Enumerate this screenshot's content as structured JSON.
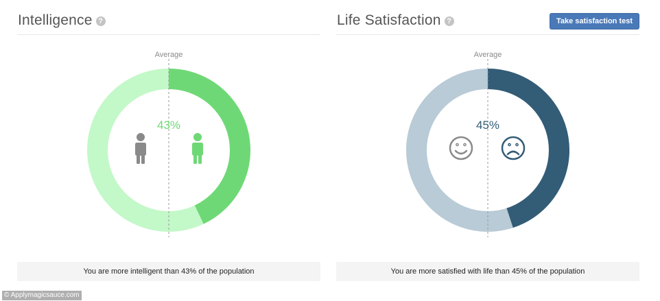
{
  "colors": {
    "intel_light": "#c3f8c8",
    "intel_dark": "#6fd876",
    "intel_text": "#6fd876",
    "life_light": "#b8cbd6",
    "life_dark": "#335c76",
    "life_text": "#335c76",
    "neutral_icon": "#8a8a8a",
    "button_bg": "#4a79b8"
  },
  "intelligence": {
    "title": "Intelligence",
    "help_icon": "?",
    "average_label": "Average",
    "percent": 43,
    "percent_label": "43%",
    "left_icon": "person-icon-gray",
    "right_icon": "person-icon-green",
    "caption": "You are more intelligent than 43% of the population"
  },
  "life_satisfaction": {
    "title": "Life Satisfaction",
    "help_icon": "?",
    "button_label": "Take satisfaction test",
    "average_label": "Average",
    "percent": 45,
    "percent_label": "45%",
    "left_icon": "smile-face-icon",
    "right_icon": "sad-face-icon",
    "caption": "You are more satisfied with life than 45% of the population"
  },
  "watermark": "© Applymagicsauce.com"
}
